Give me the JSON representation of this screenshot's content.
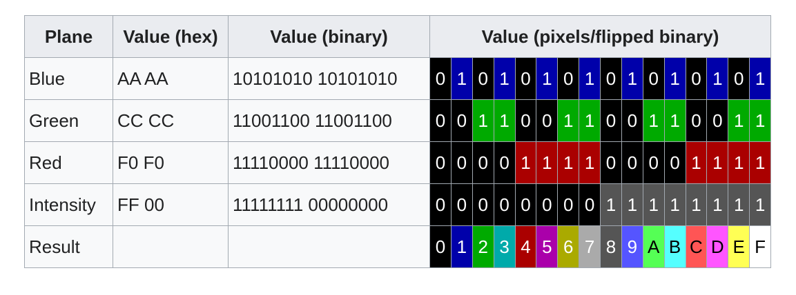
{
  "header": [
    "Plane",
    "Value (hex)",
    "Value (binary)",
    "Value (pixels/flipped binary)"
  ],
  "rows": [
    {
      "plane": "Blue",
      "hex": "AA AA",
      "binary": "10101010 10101010",
      "bits": [
        "0",
        "1",
        "0",
        "1",
        "0",
        "1",
        "0",
        "1",
        "0",
        "1",
        "0",
        "1",
        "0",
        "1",
        "0",
        "1"
      ],
      "on_color": "#0000aa"
    },
    {
      "plane": "Green",
      "hex": "CC CC",
      "binary": "11001100 11001100",
      "bits": [
        "0",
        "0",
        "1",
        "1",
        "0",
        "0",
        "1",
        "1",
        "0",
        "0",
        "1",
        "1",
        "0",
        "0",
        "1",
        "1"
      ],
      "on_color": "#00aa00"
    },
    {
      "plane": "Red",
      "hex": "F0 F0",
      "binary": "11110000 11110000",
      "bits": [
        "0",
        "0",
        "0",
        "0",
        "1",
        "1",
        "1",
        "1",
        "0",
        "0",
        "0",
        "0",
        "1",
        "1",
        "1",
        "1"
      ],
      "on_color": "#aa0000"
    },
    {
      "plane": "Intensity",
      "hex": "FF 00",
      "binary": "11111111 00000000",
      "bits": [
        "0",
        "0",
        "0",
        "0",
        "0",
        "0",
        "0",
        "0",
        "1",
        "1",
        "1",
        "1",
        "1",
        "1",
        "1",
        "1"
      ],
      "on_color": "#555555"
    }
  ],
  "off_color": "#000000",
  "result": {
    "label": "Result",
    "cells": [
      {
        "text": "0",
        "color": "#000000",
        "text_color": "#ffffff"
      },
      {
        "text": "1",
        "color": "#0000aa",
        "text_color": "#ffffff"
      },
      {
        "text": "2",
        "color": "#00aa00",
        "text_color": "#ffffff"
      },
      {
        "text": "3",
        "color": "#00aaaa",
        "text_color": "#ffffff"
      },
      {
        "text": "4",
        "color": "#aa0000",
        "text_color": "#ffffff"
      },
      {
        "text": "5",
        "color": "#aa00aa",
        "text_color": "#ffffff"
      },
      {
        "text": "6",
        "color": "#aaaa00",
        "text_color": "#ffffff"
      },
      {
        "text": "7",
        "color": "#aaaaaa",
        "text_color": "#ffffff"
      },
      {
        "text": "8",
        "color": "#555555",
        "text_color": "#ffffff"
      },
      {
        "text": "9",
        "color": "#5555ff",
        "text_color": "#ffffff"
      },
      {
        "text": "A",
        "color": "#55ff55",
        "text_color": "#000000"
      },
      {
        "text": "B",
        "color": "#55ffff",
        "text_color": "#000000"
      },
      {
        "text": "C",
        "color": "#ff5555",
        "text_color": "#000000"
      },
      {
        "text": "D",
        "color": "#ff55ff",
        "text_color": "#000000"
      },
      {
        "text": "E",
        "color": "#ffff55",
        "text_color": "#000000"
      },
      {
        "text": "F",
        "color": "#ffffff",
        "text_color": "#000000"
      }
    ]
  }
}
